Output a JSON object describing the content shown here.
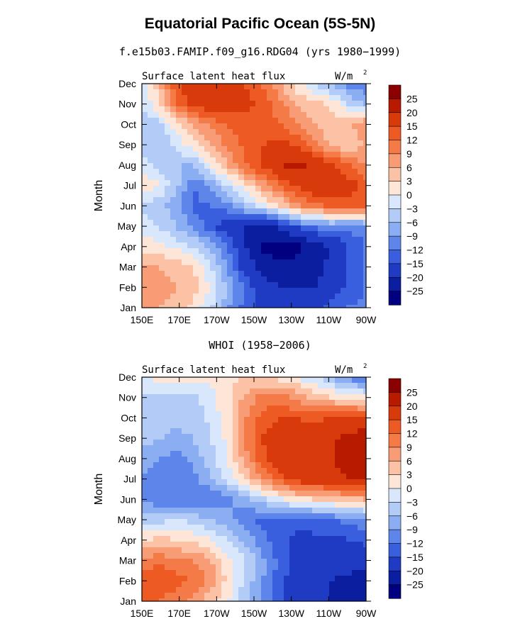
{
  "title": "Equatorial Pacific Ocean (5S-5N)",
  "colorbar": {
    "levels": [
      "25",
      "20",
      "15",
      "12",
      "9",
      "6",
      "3",
      "0",
      "−3",
      "−6",
      "−9",
      "−12",
      "−15",
      "−20",
      "−25"
    ],
    "colors": [
      "#8b0000",
      "#b81a00",
      "#d93a0c",
      "#ee5a24",
      "#f47a48",
      "#f89c75",
      "#fbc2a5",
      "#fde6d8",
      "#d8e7fb",
      "#b3ccf7",
      "#8badf2",
      "#5e86ea",
      "#3a5fde",
      "#1f3bc4",
      "#0c1ea0",
      "#000080"
    ]
  },
  "chart_data": [
    {
      "type": "heatmap",
      "subtitle": "f.e15b03.FAMIP.f09_g16.RDG04 (yrs 1980−1999)",
      "panel_left_label": "Surface latent heat flux",
      "units_label": "W/m",
      "units_superscript": "2",
      "ylabel": "Month",
      "xlabel": "",
      "x_ticks": [
        "150E",
        "170E",
        "170W",
        "150W",
        "130W",
        "110W",
        "90W"
      ],
      "y_ticks": [
        "Jan",
        "Feb",
        "Mar",
        "Apr",
        "May",
        "Jun",
        "Jul",
        "Aug",
        "Sep",
        "Oct",
        "Nov",
        "Dec"
      ],
      "x_range": [
        "150E",
        "90W"
      ],
      "y_range": [
        "Jan",
        "Dec"
      ],
      "value_range": [
        -25,
        25
      ],
      "grid": [
        [
          6,
          6,
          5,
          2,
          -3,
          -9,
          -13,
          -16,
          -18,
          -19,
          -17,
          -13,
          -12,
          -11
        ],
        [
          7,
          7,
          6,
          4,
          0,
          -6,
          -13,
          -17,
          -20,
          -20,
          -20,
          -18,
          -14,
          -12
        ],
        [
          6,
          6,
          5,
          3,
          -3,
          -10,
          -17,
          -22,
          -24,
          -24,
          -22,
          -19,
          -15,
          -12
        ],
        [
          2,
          1,
          -1,
          -3,
          -7,
          -12,
          -20,
          -26,
          -27,
          -26,
          -23,
          -19,
          -15,
          -12
        ],
        [
          -2,
          -3,
          -6,
          -10,
          -14,
          -18,
          -20,
          -22,
          -19,
          -14,
          -11,
          -10,
          -11,
          -10
        ],
        [
          -3,
          -5,
          -8,
          -13,
          -12,
          -10,
          -5,
          -1,
          3,
          8,
          11,
          13,
          14,
          13
        ],
        [
          3,
          0,
          -5,
          -12,
          -8,
          -3,
          2,
          7,
          12,
          16,
          18,
          19,
          17,
          14
        ],
        [
          -2,
          -4,
          -6,
          -6,
          1,
          6,
          12,
          16,
          20,
          21,
          19,
          16,
          12,
          9
        ],
        [
          -4,
          -6,
          -2,
          2,
          6,
          10,
          13,
          15,
          16,
          15,
          10,
          5,
          3,
          6
        ],
        [
          -5,
          -4,
          2,
          6,
          10,
          12,
          14,
          14,
          12,
          9,
          6,
          4,
          6,
          9
        ],
        [
          -3,
          3,
          12,
          16,
          18,
          17,
          16,
          14,
          10,
          6,
          4,
          2,
          -3,
          -6
        ],
        [
          -2,
          5,
          14,
          19,
          20,
          18,
          15,
          12,
          6,
          1,
          -3,
          -7,
          -10,
          -12
        ]
      ]
    },
    {
      "type": "heatmap",
      "subtitle": "WHOI (1958−2006)",
      "panel_left_label": "Surface latent heat flux",
      "units_label": "W/m",
      "units_superscript": "2",
      "ylabel": "Month",
      "xlabel": "",
      "x_ticks": [
        "150E",
        "170E",
        "170W",
        "150W",
        "130W",
        "110W",
        "90W"
      ],
      "y_ticks": [
        "Jan",
        "Feb",
        "Mar",
        "Apr",
        "May",
        "Jun",
        "Jul",
        "Aug",
        "Sep",
        "Oct",
        "Nov",
        "Dec"
      ],
      "x_range": [
        "150E",
        "90W"
      ],
      "y_range": [
        "Jan",
        "Dec"
      ],
      "value_range": [
        -25,
        25
      ],
      "grid": [
        [
          12,
          12,
          10,
          8,
          4,
          0,
          -5,
          -10,
          -14,
          -17,
          -19,
          -20,
          -21,
          -22
        ],
        [
          14,
          15,
          13,
          12,
          8,
          2,
          -4,
          -9,
          -14,
          -17,
          -19,
          -20,
          -21,
          -23
        ],
        [
          10,
          11,
          10,
          9,
          6,
          1,
          -3,
          -8,
          -13,
          -16,
          -18,
          -18,
          -18,
          -18
        ],
        [
          3,
          4,
          3,
          2,
          0,
          -3,
          -7,
          -11,
          -14,
          -16,
          -16,
          -16,
          -15,
          -14
        ],
        [
          -5,
          -4,
          -3,
          -4,
          -6,
          -8,
          -11,
          -13,
          -14,
          -14,
          -13,
          -12,
          -11,
          -10
        ],
        [
          -10,
          -11,
          -12,
          -12,
          -12,
          -10,
          -7,
          -4,
          -1,
          2,
          3,
          4,
          5,
          6
        ],
        [
          -9,
          -12,
          -12,
          -10,
          -6,
          -2,
          3,
          9,
          14,
          17,
          18,
          19,
          20,
          20
        ],
        [
          -7,
          -9,
          -10,
          -8,
          -4,
          0,
          8,
          14,
          17,
          20,
          19,
          20,
          21,
          20
        ],
        [
          -5,
          -6,
          -7,
          -6,
          -3,
          1,
          10,
          15,
          18,
          18,
          17,
          19,
          22,
          23
        ],
        [
          -3,
          -4,
          -5,
          -5,
          -2,
          2,
          9,
          13,
          15,
          15,
          14,
          15,
          16,
          15
        ],
        [
          -3,
          -4,
          -5,
          -4,
          -1,
          2,
          7,
          10,
          10,
          8,
          5,
          3,
          2,
          1
        ],
        [
          -1,
          1,
          2,
          1,
          1,
          2,
          3,
          3,
          2,
          0,
          -3,
          -6,
          -10,
          -14
        ]
      ]
    }
  ]
}
